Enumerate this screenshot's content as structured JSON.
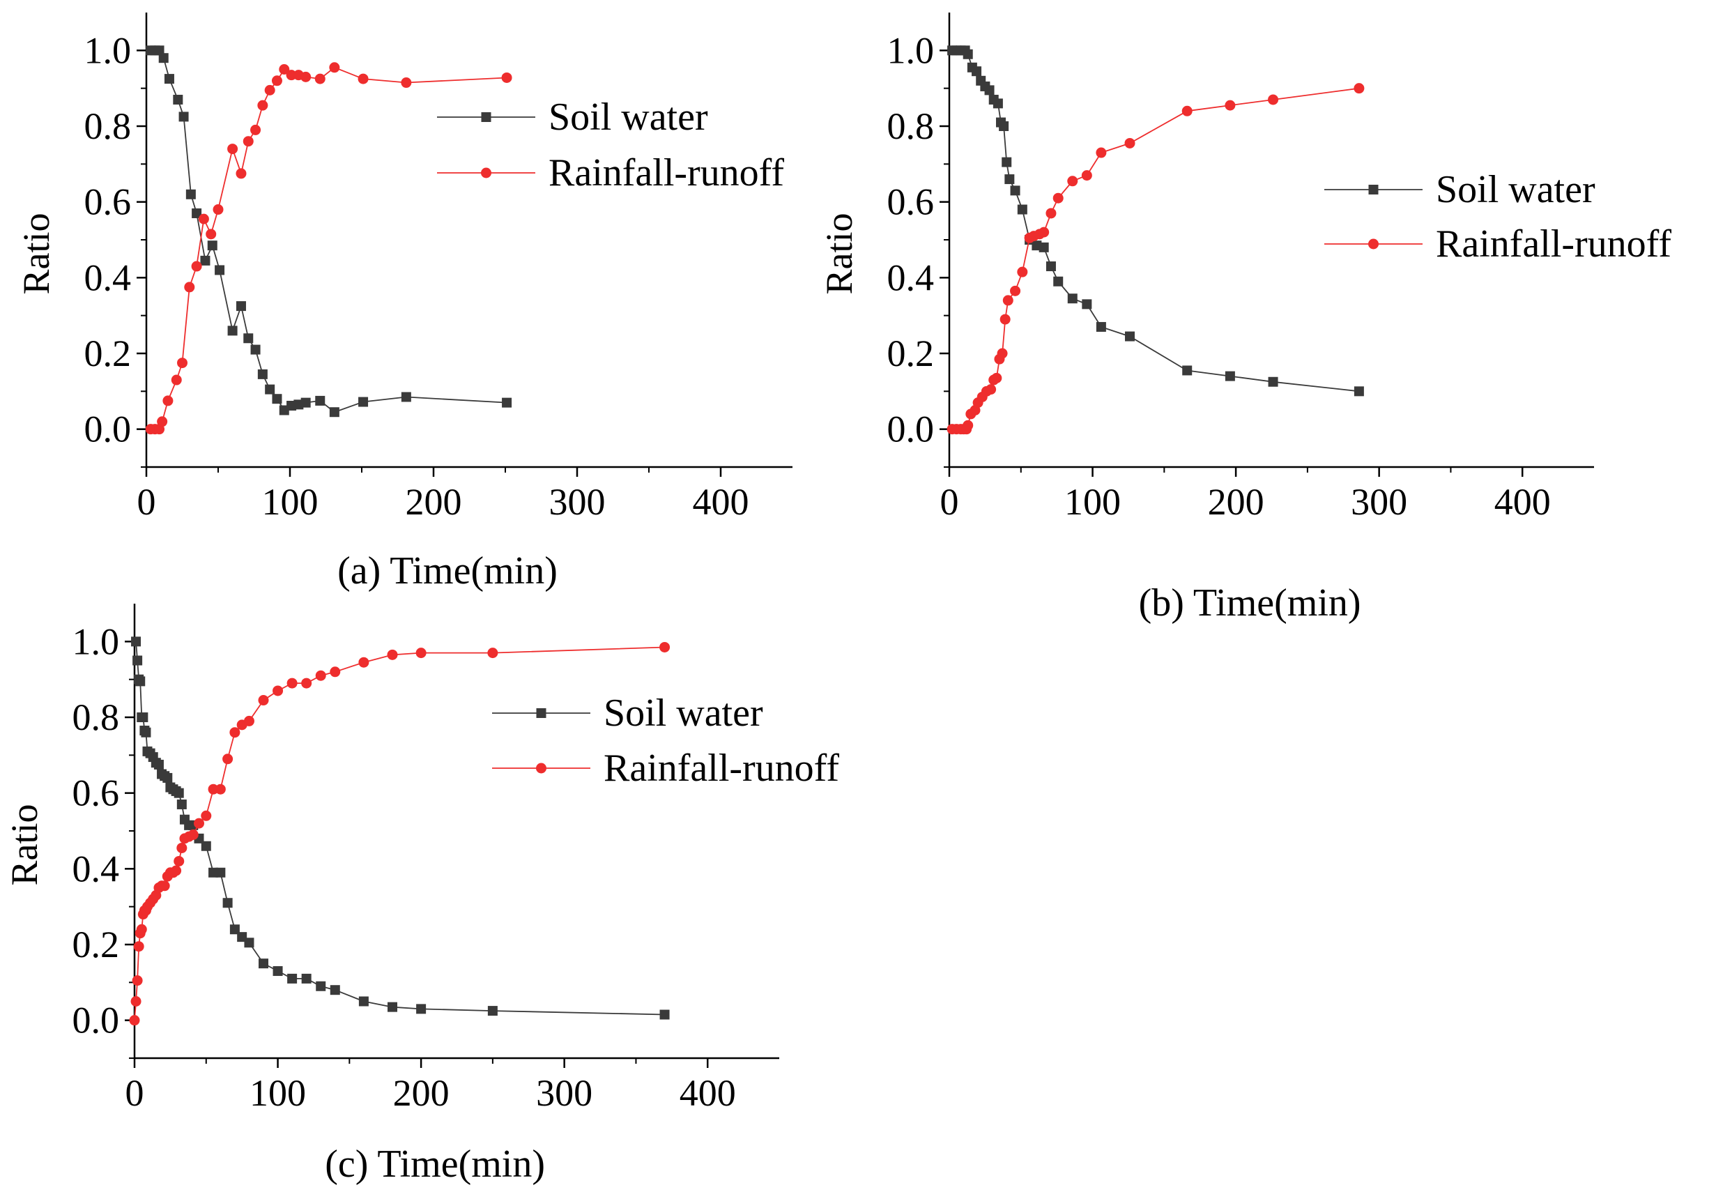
{
  "colors": {
    "soil": "#3a3a3a",
    "runoff": "#ee2d2d",
    "axis": "#000000"
  },
  "chart_data": [
    {
      "id": "a",
      "type": "line",
      "xlabel": "(a)  Time(min)",
      "ylabel": "Ratio",
      "xlim": [
        0,
        450
      ],
      "ylim": [
        -0.1,
        1.1
      ],
      "xticks": [
        "0",
        "100",
        "200",
        "300",
        "400"
      ],
      "yticks": [
        "0.0",
        "0.2",
        "0.4",
        "0.6",
        "0.8",
        "1.0"
      ],
      "legend": [
        "Soil water",
        "Rainfall-runoff"
      ],
      "legend_position": "top-right",
      "series": [
        {
          "name": "Soil water",
          "marker": "square",
          "points": [
            [
              3,
              1.0
            ],
            [
              6,
              1.0
            ],
            [
              9,
              1.0
            ],
            [
              12,
              0.98
            ],
            [
              16,
              0.925
            ],
            [
              22,
              0.87
            ],
            [
              26,
              0.825
            ],
            [
              31,
              0.62
            ],
            [
              35,
              0.57
            ],
            [
              41,
              0.445
            ],
            [
              46,
              0.485
            ],
            [
              51,
              0.42
            ],
            [
              60,
              0.26
            ],
            [
              66,
              0.325
            ],
            [
              71,
              0.24
            ],
            [
              76,
              0.21
            ],
            [
              81,
              0.145
            ],
            [
              86,
              0.105
            ],
            [
              91,
              0.08
            ],
            [
              96,
              0.05
            ],
            [
              101,
              0.062
            ],
            [
              106,
              0.065
            ],
            [
              111,
              0.07
            ],
            [
              121,
              0.075
            ],
            [
              131,
              0.045
            ],
            [
              151,
              0.072
            ],
            [
              181,
              0.085
            ],
            [
              251,
              0.07
            ]
          ]
        },
        {
          "name": "Rainfall-runoff",
          "marker": "circle",
          "points": [
            [
              3,
              0.0
            ],
            [
              6,
              0.0
            ],
            [
              9,
              0.0
            ],
            [
              11,
              0.02
            ],
            [
              15,
              0.075
            ],
            [
              21,
              0.13
            ],
            [
              25,
              0.175
            ],
            [
              30,
              0.375
            ],
            [
              35,
              0.43
            ],
            [
              40,
              0.555
            ],
            [
              45,
              0.515
            ],
            [
              50,
              0.58
            ],
            [
              60,
              0.74
            ],
            [
              66,
              0.675
            ],
            [
              71,
              0.76
            ],
            [
              76,
              0.79
            ],
            [
              81,
              0.855
            ],
            [
              86,
              0.895
            ],
            [
              91,
              0.92
            ],
            [
              96,
              0.95
            ],
            [
              101,
              0.935
            ],
            [
              106,
              0.935
            ],
            [
              111,
              0.93
            ],
            [
              121,
              0.925
            ],
            [
              131,
              0.955
            ],
            [
              151,
              0.925
            ],
            [
              181,
              0.915
            ],
            [
              251,
              0.928
            ]
          ]
        }
      ]
    },
    {
      "id": "b",
      "type": "line",
      "xlabel": "(b)  Time(min)",
      "ylabel": "Ratio",
      "xlim": [
        0,
        450
      ],
      "ylim": [
        -0.1,
        1.1
      ],
      "xticks": [
        "0",
        "100",
        "200",
        "300",
        "400"
      ],
      "yticks": [
        "0.0",
        "0.2",
        "0.4",
        "0.6",
        "0.8",
        "1.0"
      ],
      "legend": [
        "Soil water",
        "Rainfall-runoff"
      ],
      "legend_position": "right",
      "series": [
        {
          "name": "Soil water",
          "marker": "square",
          "points": [
            [
              2,
              1.0
            ],
            [
              5,
              1.0
            ],
            [
              8,
              1.0
            ],
            [
              11,
              1.0
            ],
            [
              13,
              0.99
            ],
            [
              16,
              0.955
            ],
            [
              19,
              0.945
            ],
            [
              22,
              0.92
            ],
            [
              25,
              0.905
            ],
            [
              28,
              0.895
            ],
            [
              31,
              0.87
            ],
            [
              34,
              0.86
            ],
            [
              36,
              0.81
            ],
            [
              38,
              0.8
            ],
            [
              40,
              0.705
            ],
            [
              42,
              0.66
            ],
            [
              46,
              0.63
            ],
            [
              51,
              0.58
            ],
            [
              56,
              0.5
            ],
            [
              61,
              0.485
            ],
            [
              66,
              0.48
            ],
            [
              71,
              0.43
            ],
            [
              76,
              0.39
            ],
            [
              86,
              0.345
            ],
            [
              96,
              0.33
            ],
            [
              106,
              0.27
            ],
            [
              126,
              0.245
            ],
            [
              166,
              0.155
            ],
            [
              196,
              0.14
            ],
            [
              226,
              0.125
            ],
            [
              286,
              0.1
            ]
          ]
        },
        {
          "name": "Rainfall-runoff",
          "marker": "circle",
          "points": [
            [
              2,
              0.0
            ],
            [
              5,
              0.0
            ],
            [
              8,
              0.0
            ],
            [
              10,
              0.0
            ],
            [
              12,
              0.0
            ],
            [
              13,
              0.01
            ],
            [
              15,
              0.04
            ],
            [
              18,
              0.05
            ],
            [
              20,
              0.07
            ],
            [
              23,
              0.085
            ],
            [
              26,
              0.1
            ],
            [
              29,
              0.105
            ],
            [
              31,
              0.13
            ],
            [
              33,
              0.135
            ],
            [
              35,
              0.185
            ],
            [
              37,
              0.2
            ],
            [
              39,
              0.29
            ],
            [
              41,
              0.34
            ],
            [
              46,
              0.365
            ],
            [
              51,
              0.415
            ],
            [
              56,
              0.505
            ],
            [
              59,
              0.51
            ],
            [
              63,
              0.515
            ],
            [
              66,
              0.52
            ],
            [
              71,
              0.57
            ],
            [
              76,
              0.61
            ],
            [
              86,
              0.655
            ],
            [
              96,
              0.67
            ],
            [
              106,
              0.73
            ],
            [
              126,
              0.755
            ],
            [
              166,
              0.84
            ],
            [
              196,
              0.855
            ],
            [
              226,
              0.87
            ],
            [
              286,
              0.9
            ]
          ]
        }
      ]
    },
    {
      "id": "c",
      "type": "line",
      "xlabel": "(c)  Time(min)",
      "ylabel": "Ratio",
      "xlim": [
        0,
        450
      ],
      "ylim": [
        -0.1,
        1.1
      ],
      "xticks": [
        "0",
        "100",
        "200",
        "300",
        "400"
      ],
      "yticks": [
        "0.0",
        "0.2",
        "0.4",
        "0.6",
        "0.8",
        "1.0"
      ],
      "legend": [
        "Soil water",
        "Rainfall-runoff"
      ],
      "legend_position": "top-right",
      "series": [
        {
          "name": "Soil water",
          "marker": "square",
          "points": [
            [
              1,
              1.0
            ],
            [
              2,
              0.95
            ],
            [
              3,
              0.9
            ],
            [
              4,
              0.895
            ],
            [
              5,
              0.8
            ],
            [
              6,
              0.8
            ],
            [
              7,
              0.765
            ],
            [
              8,
              0.76
            ],
            [
              9,
              0.71
            ],
            [
              11,
              0.705
            ],
            [
              13,
              0.695
            ],
            [
              15,
              0.68
            ],
            [
              17,
              0.675
            ],
            [
              19,
              0.65
            ],
            [
              21,
              0.645
            ],
            [
              23,
              0.64
            ],
            [
              25,
              0.615
            ],
            [
              27,
              0.61
            ],
            [
              29,
              0.605
            ],
            [
              31,
              0.6
            ],
            [
              33,
              0.57
            ],
            [
              35,
              0.53
            ],
            [
              38,
              0.515
            ],
            [
              41,
              0.515
            ],
            [
              45,
              0.48
            ],
            [
              50,
              0.46
            ],
            [
              55,
              0.39
            ],
            [
              60,
              0.39
            ],
            [
              65,
              0.31
            ],
            [
              70,
              0.24
            ],
            [
              75,
              0.22
            ],
            [
              80,
              0.205
            ],
            [
              90,
              0.15
            ],
            [
              100,
              0.13
            ],
            [
              110,
              0.11
            ],
            [
              120,
              0.11
            ],
            [
              130,
              0.09
            ],
            [
              140,
              0.08
            ],
            [
              160,
              0.05
            ],
            [
              180,
              0.035
            ],
            [
              200,
              0.03
            ],
            [
              250,
              0.025
            ],
            [
              370,
              0.015
            ]
          ]
        },
        {
          "name": "Rainfall-runoff",
          "marker": "circle",
          "points": [
            [
              0,
              0.0
            ],
            [
              1,
              0.05
            ],
            [
              2,
              0.105
            ],
            [
              3,
              0.195
            ],
            [
              4,
              0.23
            ],
            [
              5,
              0.24
            ],
            [
              6,
              0.28
            ],
            [
              7,
              0.29
            ],
            [
              8,
              0.29
            ],
            [
              9,
              0.3
            ],
            [
              11,
              0.31
            ],
            [
              13,
              0.32
            ],
            [
              15,
              0.33
            ],
            [
              17,
              0.35
            ],
            [
              19,
              0.355
            ],
            [
              21,
              0.355
            ],
            [
              23,
              0.38
            ],
            [
              25,
              0.39
            ],
            [
              27,
              0.39
            ],
            [
              29,
              0.395
            ],
            [
              31,
              0.42
            ],
            [
              33,
              0.455
            ],
            [
              35,
              0.48
            ],
            [
              38,
              0.485
            ],
            [
              41,
              0.49
            ],
            [
              45,
              0.52
            ],
            [
              50,
              0.54
            ],
            [
              55,
              0.61
            ],
            [
              60,
              0.61
            ],
            [
              65,
              0.69
            ],
            [
              70,
              0.76
            ],
            [
              75,
              0.78
            ],
            [
              80,
              0.79
            ],
            [
              90,
              0.845
            ],
            [
              100,
              0.87
            ],
            [
              110,
              0.89
            ],
            [
              120,
              0.89
            ],
            [
              130,
              0.91
            ],
            [
              140,
              0.92
            ],
            [
              160,
              0.945
            ],
            [
              180,
              0.965
            ],
            [
              200,
              0.97
            ],
            [
              250,
              0.97
            ],
            [
              370,
              0.985
            ]
          ]
        }
      ]
    }
  ]
}
